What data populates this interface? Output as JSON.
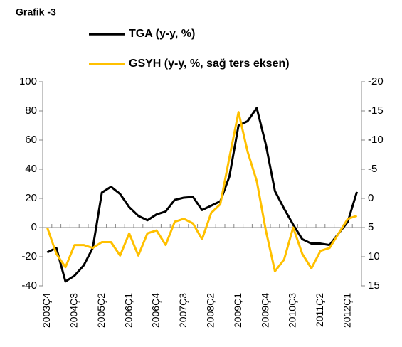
{
  "chart_data": {
    "type": "line",
    "title": "Grafik -3",
    "categories": [
      "2003Ç4",
      null,
      null,
      "2004Ç3",
      null,
      null,
      "2005Ç2",
      null,
      null,
      "2006Ç1",
      null,
      null,
      "2006Ç4",
      null,
      null,
      "2007Ç3",
      null,
      null,
      "2008Ç2",
      null,
      null,
      "2009Ç1",
      null,
      null,
      "2009Ç4",
      null,
      null,
      "2010Ç3",
      null,
      null,
      "2011Ç2",
      null,
      null,
      "2012Ç1",
      null
    ],
    "series": [
      {
        "name": "TGA (y-y, %)",
        "color": "#000000",
        "values": [
          -17,
          -14,
          -37,
          -33,
          -26,
          -14,
          24,
          28,
          23,
          14,
          8,
          5,
          9,
          11,
          19,
          20.5,
          21,
          12,
          15,
          18,
          35,
          70,
          73,
          82,
          57,
          25,
          13,
          2,
          -8,
          -11,
          -11,
          -12,
          -4,
          4,
          24.5
        ]
      },
      {
        "name": "GSYH (y-y, %, sağ ters eksen)",
        "color": "#FFC000",
        "axis": "y2",
        "values": [
          5,
          9.5,
          11.8,
          8,
          8,
          8.5,
          7.5,
          7.5,
          9.8,
          6,
          9.8,
          6,
          5.5,
          8,
          4,
          3.5,
          4.3,
          7,
          2.5,
          1,
          -7,
          -14.8,
          -8,
          -3,
          5.5,
          12.5,
          10.5,
          5,
          9.5,
          12,
          9,
          8.5,
          6,
          3.5,
          3
        ]
      }
    ],
    "ylim": [
      -40,
      100
    ],
    "yticks": [
      -40,
      -20,
      0,
      20,
      40,
      60,
      80,
      100
    ],
    "y2lim": [
      -20,
      15
    ],
    "y2ticks": [
      -20,
      -15,
      -10,
      -5,
      0,
      5,
      10,
      15
    ],
    "y2_inverted": true,
    "grid": false
  }
}
